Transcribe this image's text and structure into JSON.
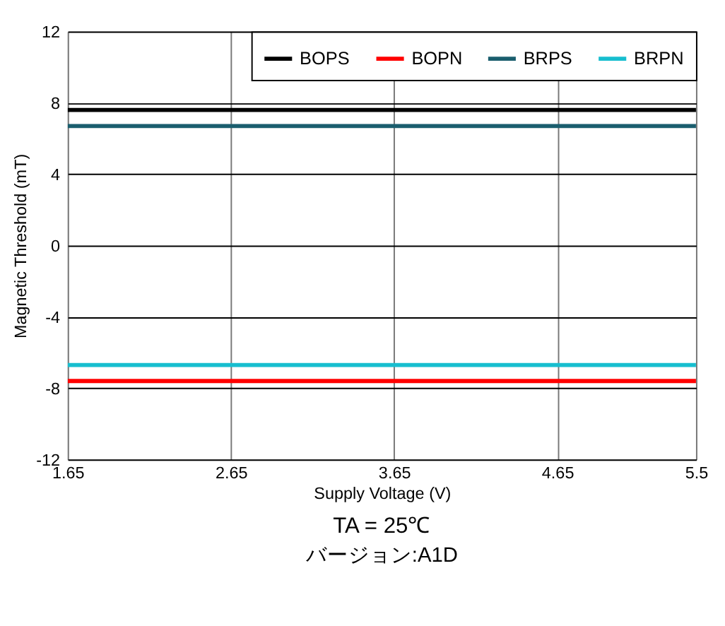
{
  "chart_data": {
    "type": "line",
    "xlabel": "Supply Voltage (V)",
    "ylabel": "Magnetic Threshold (mT)",
    "x": [
      1.65,
      5.5
    ],
    "series": [
      {
        "name": "BOPS",
        "color": "#000000",
        "values": [
          7.6,
          7.6
        ]
      },
      {
        "name": "BOPN",
        "color": "#ff0000",
        "values": [
          -7.6,
          -7.6
        ]
      },
      {
        "name": "BRPS",
        "color": "#1a5e6e",
        "values": [
          6.7,
          6.7
        ]
      },
      {
        "name": "BRPN",
        "color": "#17becf",
        "values": [
          -6.7,
          -6.7
        ]
      }
    ],
    "xlim": [
      1.65,
      5.5
    ],
    "xticks": [
      1.65,
      2.65,
      3.65,
      4.65,
      5.5
    ],
    "ylim": [
      -12,
      12
    ],
    "yticks": [
      -12,
      -8,
      -4,
      0,
      4,
      8,
      12
    ],
    "grid": true,
    "legend": "top right",
    "marker": "none",
    "line_style": "solid",
    "annotations": [
      "TA = 25℃",
      "バージョン:A1D"
    ]
  }
}
